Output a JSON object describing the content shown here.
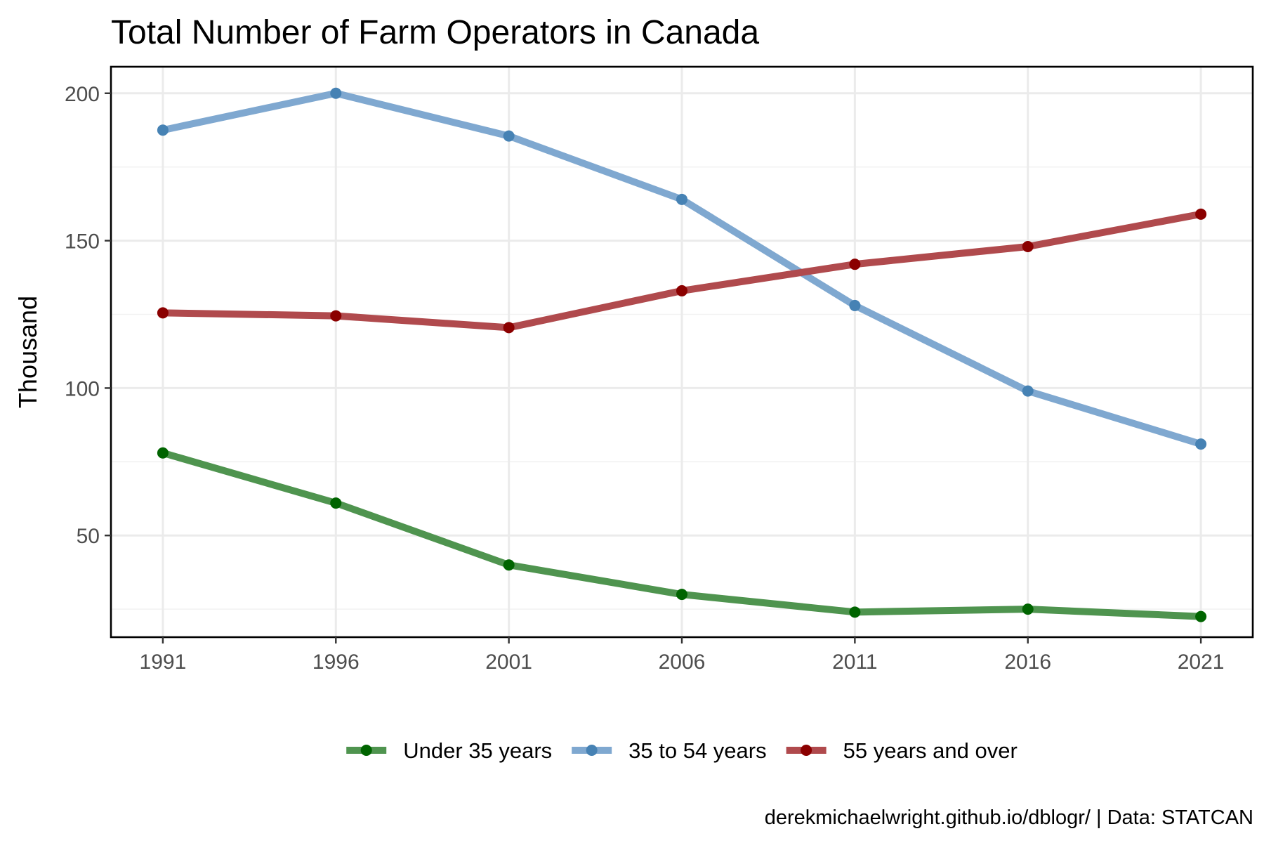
{
  "chart_data": {
    "type": "line",
    "title": "Total Number of Farm Operators in Canada",
    "xlabel": "",
    "ylabel": "Thousand",
    "caption": "derekmichaelwright.github.io/dblogr/ | Data: STATCAN",
    "x": [
      1991,
      1996,
      2001,
      2006,
      2011,
      2016,
      2021
    ],
    "x_tick_labels": [
      "1991",
      "1996",
      "2001",
      "2006",
      "2011",
      "2016",
      "2021"
    ],
    "y_ticks": [
      50,
      100,
      150,
      200
    ],
    "y_tick_labels": [
      "50",
      "100",
      "150",
      "200"
    ],
    "xlim": [
      1989.5,
      2022.5
    ],
    "ylim": [
      15.5,
      209
    ],
    "grid": true,
    "legend_position": "bottom",
    "series": [
      {
        "name": "Under 35 years",
        "line_color": "#4f944f",
        "point_color": "#006400",
        "values": [
          78,
          61,
          40,
          30,
          24,
          25,
          22.5
        ]
      },
      {
        "name": "35 to 54 years",
        "line_color": "#7fa8d0",
        "point_color": "#4682b4",
        "values": [
          187.5,
          200,
          185.5,
          164,
          128,
          99,
          81
        ]
      },
      {
        "name": "55 years and over",
        "line_color": "#b04a4d",
        "point_color": "#8b0000",
        "values": [
          125.5,
          124.5,
          120.5,
          133,
          142,
          148,
          159
        ]
      }
    ]
  }
}
